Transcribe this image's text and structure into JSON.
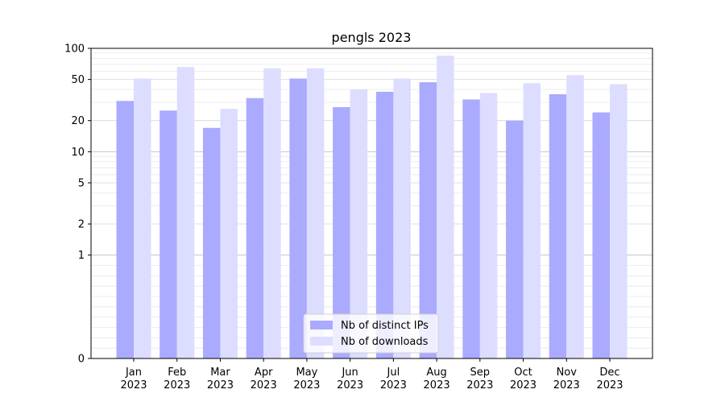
{
  "chart_data": {
    "type": "bar",
    "title": "pengls 2023",
    "categories": [
      "Jan\n2023",
      "Feb\n2023",
      "Mar\n2023",
      "Apr\n2023",
      "May\n2023",
      "Jun\n2023",
      "Jul\n2023",
      "Aug\n2023",
      "Sep\n2023",
      "Oct\n2023",
      "Nov\n2023",
      "Dec\n2023"
    ],
    "series": [
      {
        "name": "Nb of distinct IPs",
        "color": "#aaaaff",
        "values": [
          31,
          25,
          17,
          33,
          51,
          27,
          38,
          47,
          32,
          20,
          36,
          24
        ]
      },
      {
        "name": "Nb of downloads",
        "color": "#ddddff",
        "values": [
          51,
          66,
          26,
          64,
          64,
          40,
          51,
          85,
          37,
          46,
          55,
          45
        ]
      }
    ],
    "ylabel": "",
    "xlabel": "",
    "yscale": "symlog",
    "yticks": [
      0,
      1,
      2,
      5,
      10,
      20,
      50,
      100
    ],
    "ylim": [
      0,
      100
    ],
    "grid": true,
    "legend_position": "bottom-center"
  }
}
